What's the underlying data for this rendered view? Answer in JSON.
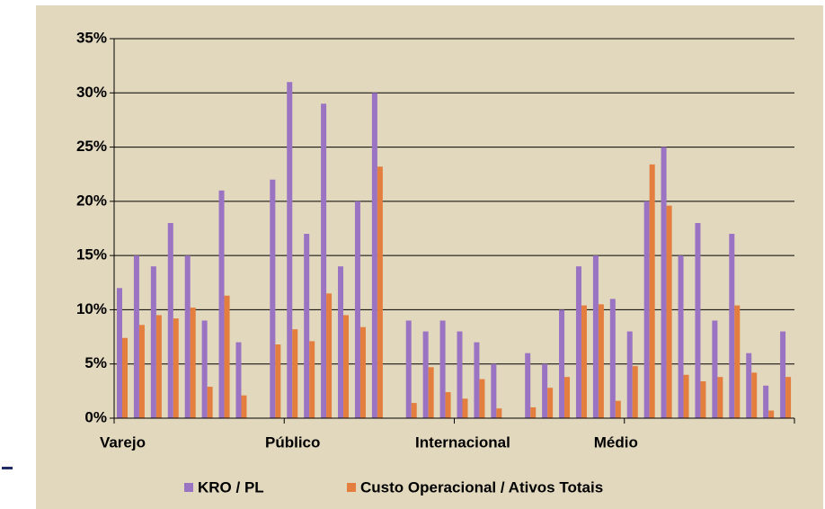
{
  "chart_data": {
    "type": "bar",
    "categories": [
      "Varejo",
      null,
      null,
      null,
      null,
      null,
      null,
      null,
      null,
      null,
      "Público",
      null,
      null,
      null,
      null,
      null,
      null,
      null,
      null,
      null,
      "Internacional",
      null,
      null,
      null,
      null,
      null,
      null,
      null,
      null,
      "Médio",
      null,
      null,
      null,
      null,
      null,
      null,
      null,
      null,
      null,
      null
    ],
    "series": [
      {
        "name": "KRO / PL",
        "color": "#9a74c2",
        "values": [
          12,
          15,
          14,
          18,
          15,
          9,
          21,
          7,
          null,
          22,
          31,
          17,
          29,
          14,
          20,
          30,
          null,
          9,
          8,
          9,
          8,
          7,
          5,
          null,
          6,
          5,
          10,
          14,
          15,
          11,
          8,
          20,
          25,
          15,
          18,
          9,
          17,
          6,
          3,
          8
        ]
      },
      {
        "name": "Custo Operacional / Ativos Totais",
        "color": "#e37e3e",
        "values": [
          7.4,
          8.6,
          9.5,
          9.2,
          10.2,
          2.9,
          11.3,
          2.1,
          null,
          6.8,
          8.2,
          7.1,
          11.5,
          9.5,
          8.4,
          23.2,
          null,
          1.4,
          4.7,
          2.4,
          1.8,
          3.6,
          0.9,
          null,
          1.0,
          2.8,
          3.8,
          10.4,
          10.5,
          1.6,
          4.8,
          23.4,
          19.6,
          4.0,
          3.4,
          3.8,
          10.4,
          4.2,
          0.7,
          3.8
        ]
      }
    ],
    "ylim": [
      0,
      35
    ],
    "yticks": [
      {
        "value": 0,
        "label": "0%"
      },
      {
        "value": 5,
        "label": "5%"
      },
      {
        "value": 10,
        "label": "10%"
      },
      {
        "value": 15,
        "label": "15%"
      },
      {
        "value": 20,
        "label": "20%"
      },
      {
        "value": 25,
        "label": "25%"
      },
      {
        "value": 30,
        "label": "30%"
      },
      {
        "value": 35,
        "label": "35%"
      }
    ],
    "grid": true,
    "legend": "bottom"
  }
}
